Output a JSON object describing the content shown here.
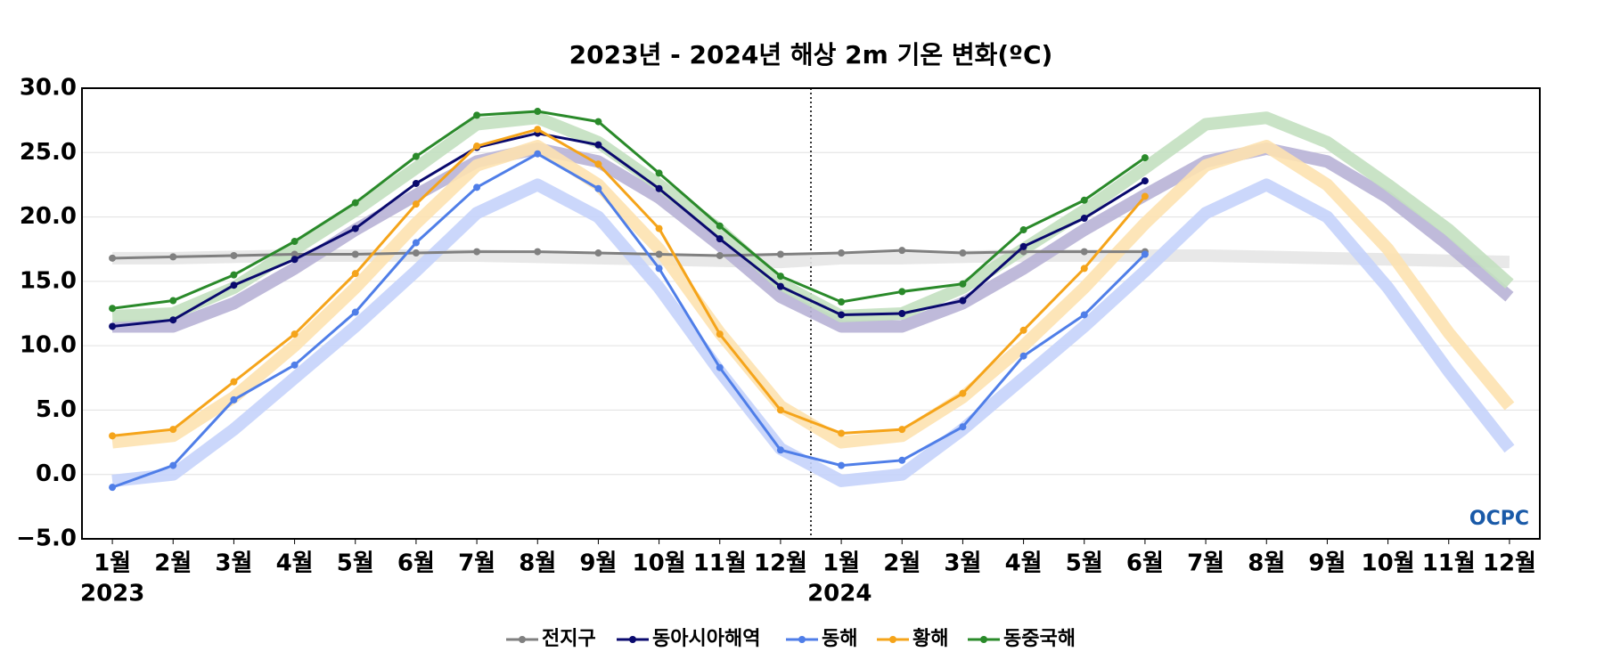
{
  "chart_data": {
    "type": "line",
    "title": "2023년 - 2024년 해상 2m 기온 변화(ºC)",
    "categories": [
      "1월",
      "2월",
      "3월",
      "4월",
      "5월",
      "6월",
      "7월",
      "8월",
      "9월",
      "10월",
      "11월",
      "12월",
      "1월",
      "2월",
      "3월",
      "4월",
      "5월",
      "6월",
      "7월",
      "8월",
      "9월",
      "10월",
      "11월",
      "12월"
    ],
    "years": [
      "2023",
      "2024"
    ],
    "ylim": [
      -5,
      30
    ],
    "yticks": [
      {
        "value": -5,
        "label": "−5.0"
      },
      {
        "value": 0,
        "label": "0.0"
      },
      {
        "value": 5,
        "label": "5.0"
      },
      {
        "value": 10,
        "label": "10.0"
      },
      {
        "value": 15,
        "label": "15.0"
      },
      {
        "value": 20,
        "label": "20.0"
      },
      {
        "value": 25,
        "label": "25.0"
      },
      {
        "value": 30,
        "label": "30.0"
      }
    ],
    "grid": true,
    "logo": "OCPC",
    "series": [
      {
        "name": "전지구",
        "color": "#808080",
        "values": [
          16.8,
          16.9,
          17.0,
          17.1,
          17.1,
          17.2,
          17.3,
          17.3,
          17.2,
          17.1,
          17.0,
          17.1,
          17.2,
          17.4,
          17.2,
          17.3,
          17.3,
          17.3,
          null,
          null,
          null,
          null,
          null,
          null
        ]
      },
      {
        "name": "동아시아해역",
        "color": "#0a0a6e",
        "values": [
          11.5,
          12.0,
          14.7,
          16.7,
          19.1,
          22.6,
          25.4,
          26.5,
          25.6,
          22.2,
          18.3,
          14.6,
          12.4,
          12.5,
          13.5,
          17.7,
          19.9,
          22.8,
          null,
          null,
          null,
          null,
          null,
          null
        ]
      },
      {
        "name": "동해",
        "color": "#4f7ee8",
        "values": [
          -1.0,
          0.7,
          5.8,
          8.5,
          12.6,
          18.0,
          22.3,
          24.9,
          22.2,
          16.0,
          8.3,
          1.9,
          0.7,
          1.1,
          3.7,
          9.2,
          12.4,
          17.1,
          null,
          null,
          null,
          null,
          null,
          null
        ]
      },
      {
        "name": "황해",
        "color": "#f5a41a",
        "values": [
          3.0,
          3.5,
          7.2,
          10.9,
          15.6,
          21.0,
          25.5,
          26.8,
          24.1,
          19.1,
          10.9,
          5.0,
          3.2,
          3.5,
          6.3,
          11.2,
          16.0,
          21.6,
          null,
          null,
          null,
          null,
          null,
          null
        ]
      },
      {
        "name": "동중국해",
        "color": "#2a8a2a",
        "values": [
          12.9,
          13.5,
          15.5,
          18.1,
          21.1,
          24.7,
          27.9,
          28.2,
          27.4,
          23.4,
          19.3,
          15.4,
          13.4,
          14.2,
          14.8,
          19.0,
          21.3,
          24.6,
          null,
          null,
          null,
          null,
          null,
          null
        ]
      }
    ],
    "normals": [
      {
        "color": "#e6e6e6",
        "values": [
          16.8,
          16.8,
          16.9,
          17.0,
          17.0,
          17.0,
          17.0,
          16.9,
          16.8,
          16.7,
          16.6,
          16.5,
          16.8,
          16.8,
          16.9,
          17.0,
          17.0,
          17.0,
          17.0,
          16.9,
          16.8,
          16.7,
          16.6,
          16.5
        ]
      },
      {
        "color": "#b8b3d6",
        "values": [
          11.5,
          11.5,
          13.3,
          16.0,
          19.0,
          21.7,
          24.3,
          25.3,
          24.3,
          21.5,
          17.8,
          13.8,
          11.5,
          11.5,
          13.3,
          16.0,
          19.0,
          21.7,
          24.3,
          25.3,
          24.3,
          21.5,
          17.8,
          13.8
        ]
      },
      {
        "color": "#c5d3fb",
        "values": [
          -0.5,
          0.0,
          3.5,
          7.5,
          11.5,
          15.8,
          20.3,
          22.5,
          20.0,
          14.5,
          8.0,
          2.0,
          -0.5,
          0.0,
          3.5,
          7.5,
          11.5,
          15.8,
          20.3,
          22.5,
          20.0,
          14.5,
          8.0,
          2.0
        ]
      },
      {
        "color": "#fde2b0",
        "values": [
          2.5,
          3.0,
          6.0,
          10.0,
          14.5,
          19.5,
          24.0,
          25.5,
          22.5,
          17.5,
          11.0,
          5.3,
          2.5,
          3.0,
          6.0,
          10.0,
          14.5,
          19.5,
          24.0,
          25.5,
          22.5,
          17.5,
          11.0,
          5.3
        ]
      },
      {
        "color": "#c3e0c0",
        "values": [
          12.3,
          12.5,
          14.5,
          17.5,
          20.5,
          23.8,
          27.2,
          27.7,
          25.8,
          22.5,
          19.0,
          14.8,
          12.3,
          12.5,
          14.5,
          17.5,
          20.5,
          23.8,
          27.2,
          27.7,
          25.8,
          22.5,
          19.0,
          14.8
        ]
      }
    ]
  }
}
